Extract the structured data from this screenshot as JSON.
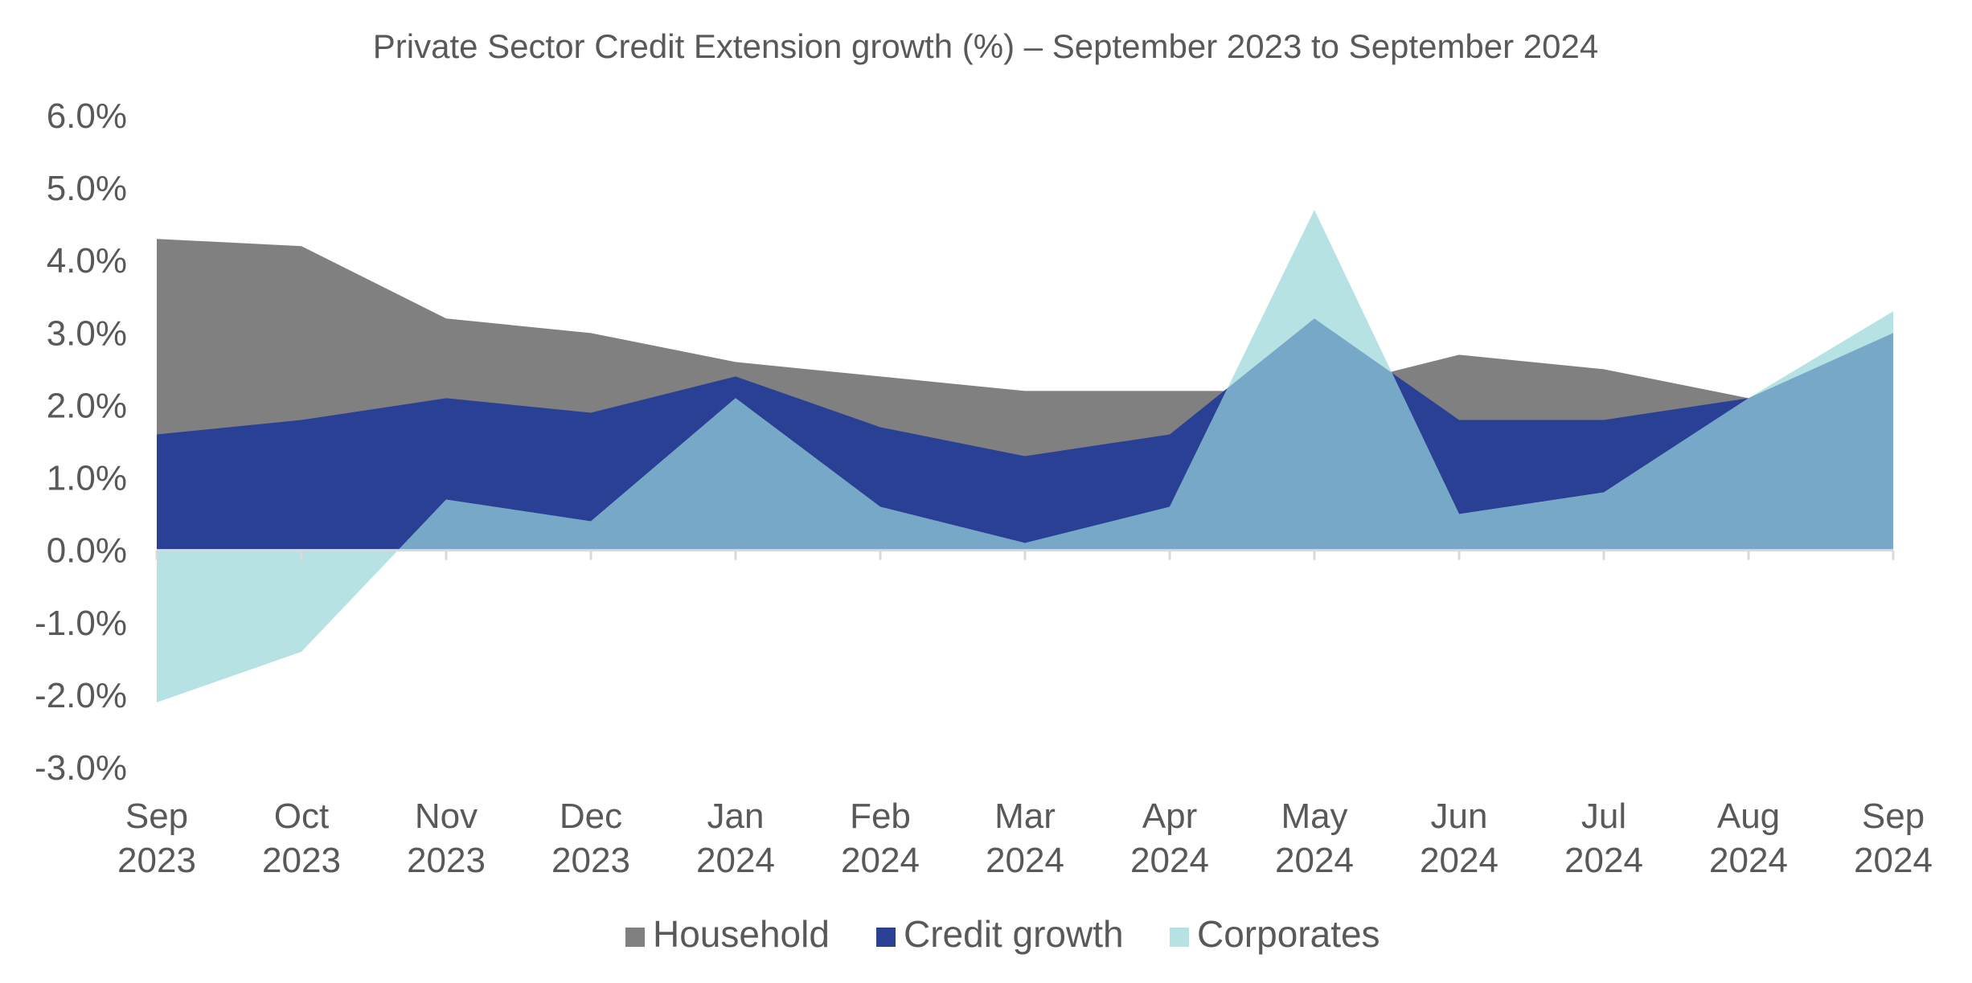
{
  "chart_data": {
    "type": "area",
    "title": "Private Sector Credit Extension growth (%) – September 2023 to September 2024",
    "xlabel": "",
    "ylabel": "",
    "ylim": [
      -3.0,
      6.0
    ],
    "yticks": [
      "6.0%",
      "5.0%",
      "4.0%",
      "3.0%",
      "2.0%",
      "1.0%",
      "0.0%",
      "-1.0%",
      "-2.0%",
      "-3.0%"
    ],
    "ytick_values": [
      6,
      5,
      4,
      3,
      2,
      1,
      0,
      -1,
      -2,
      -3
    ],
    "categories": [
      {
        "month": "Sep",
        "year": "2023"
      },
      {
        "month": "Oct",
        "year": "2023"
      },
      {
        "month": "Nov",
        "year": "2023"
      },
      {
        "month": "Dec",
        "year": "2023"
      },
      {
        "month": "Jan",
        "year": "2024"
      },
      {
        "month": "Feb",
        "year": "2024"
      },
      {
        "month": "Mar",
        "year": "2024"
      },
      {
        "month": "Apr",
        "year": "2024"
      },
      {
        "month": "May",
        "year": "2024"
      },
      {
        "month": "Jun",
        "year": "2024"
      },
      {
        "month": "Jul",
        "year": "2024"
      },
      {
        "month": "Aug",
        "year": "2024"
      },
      {
        "month": "Sep",
        "year": "2024"
      }
    ],
    "series": [
      {
        "name": "Household",
        "color": "#808080",
        "values": [
          4.3,
          4.2,
          3.2,
          3.0,
          2.6,
          2.4,
          2.2,
          2.2,
          2.2,
          2.7,
          2.5,
          2.1,
          3.0
        ]
      },
      {
        "name": "Credit growth",
        "color": "#2a4095",
        "values": [
          1.6,
          1.8,
          2.1,
          1.9,
          2.4,
          1.7,
          1.3,
          1.6,
          3.2,
          1.8,
          1.8,
          2.1,
          3.0
        ]
      },
      {
        "name": "Corporates",
        "color": "#b6e2e3",
        "values": [
          -2.1,
          -1.4,
          0.7,
          0.4,
          2.1,
          0.6,
          0.1,
          0.6,
          4.7,
          0.5,
          0.8,
          2.1,
          3.3
        ]
      }
    ],
    "overlap_color": "#77a8c7",
    "grid": false,
    "legend_position": "bottom"
  }
}
